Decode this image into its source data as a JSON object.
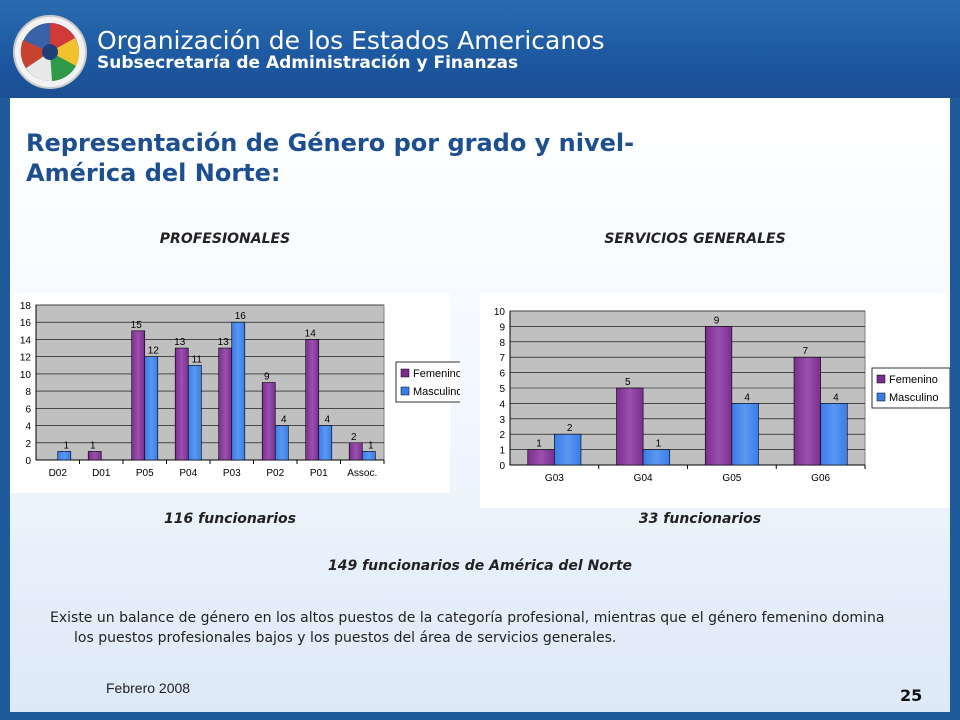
{
  "header": {
    "organization": "Organización de los Estados Americanos",
    "department": "Subsecretaría de Administración y Finanzas"
  },
  "slide": {
    "title_line1": "Representación de Género por grado y nivel-",
    "title_line2": "América del Norte:",
    "left_caption": "PROFESIONALES",
    "right_caption": "SERVICIOS GENERALES",
    "left_count": "116 funcionarios",
    "right_count": "33 funcionarios",
    "total_count": "149 funcionarios de América del Norte",
    "summary": "Existe un balance de género en los altos puestos de la categoría profesional, mientras que el género femenino domina los puestos profesionales bajos y los puestos del área de servicios generales.",
    "footer_date": "Febrero 2008",
    "page_number": "25"
  },
  "colors": {
    "femenino": "#7a2f8e",
    "masculino": "#3b7de8",
    "plot_bg": "#c0c0c0",
    "title": "#1d4e8f"
  },
  "chart_data": [
    {
      "type": "bar",
      "categories": [
        "D02",
        "D01",
        "P05",
        "P04",
        "P03",
        "P02",
        "P01",
        "Assoc."
      ],
      "series": [
        {
          "name": "Femenino",
          "values": [
            0,
            1,
            15,
            13,
            13,
            9,
            14,
            2
          ]
        },
        {
          "name": "Masculino",
          "values": [
            1,
            0,
            12,
            11,
            16,
            4,
            4,
            1
          ]
        }
      ],
      "labels": [
        [
          "",
          "1",
          "15",
          "13",
          "13",
          "9",
          "14",
          "2"
        ],
        [
          "1",
          "",
          "12",
          "11",
          "16",
          "4",
          "4",
          "1"
        ]
      ],
      "ylim": [
        0,
        18
      ],
      "yticks": [
        "0",
        "2",
        "4",
        "6",
        "8",
        "10",
        "12",
        "14",
        "16",
        "18"
      ],
      "grid": true,
      "legend": "right"
    },
    {
      "type": "bar",
      "categories": [
        "G03",
        "G04",
        "G05",
        "G06"
      ],
      "series": [
        {
          "name": "Femenino",
          "values": [
            1,
            5,
            9,
            7
          ]
        },
        {
          "name": "Masculino",
          "values": [
            2,
            1,
            4,
            4
          ]
        }
      ],
      "labels": [
        [
          "1",
          "5",
          "9",
          "7"
        ],
        [
          "2",
          "1",
          "4",
          "4"
        ]
      ],
      "ylim": [
        0,
        10
      ],
      "yticks": [
        "0",
        "1",
        "2",
        "3",
        "4",
        "5",
        "6",
        "7",
        "8",
        "9",
        "10"
      ],
      "grid": true,
      "legend": "right"
    }
  ]
}
